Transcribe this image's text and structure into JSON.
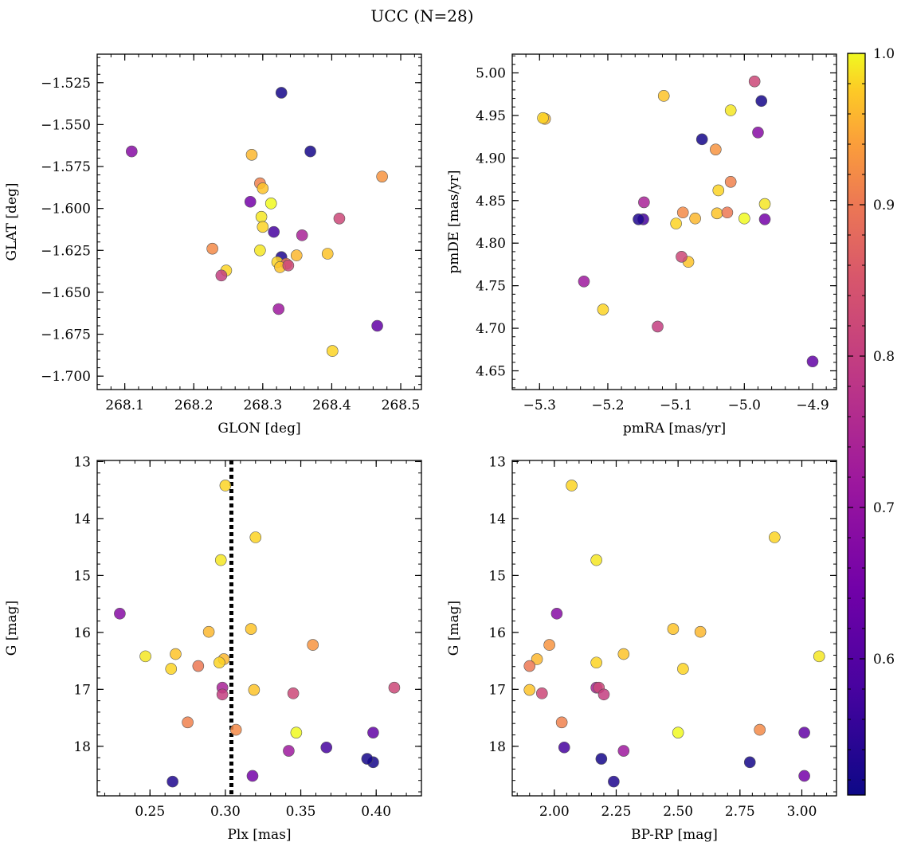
{
  "chart_data": {
    "title": "UCC (N=28)",
    "colorbar": {
      "range": [
        0.51,
        1.0
      ],
      "ticks": [
        0.6,
        0.7,
        0.8,
        0.9,
        1.0
      ],
      "tick_labels": [
        "0.6",
        "0.7",
        "0.8",
        "0.9",
        "1.0"
      ],
      "colormap": "plasma"
    },
    "stars": [
      {
        "glon": 268.327,
        "glat": -1.531,
        "pmra": -4.975,
        "pmde": 4.967,
        "plx": 0.398,
        "g": 18.28,
        "bprp": 2.79,
        "p": 0.52
      },
      {
        "glon": 268.369,
        "glat": -1.566,
        "pmra": -5.062,
        "pmde": 4.922,
        "plx": 0.394,
        "g": 18.22,
        "bprp": 2.19,
        "p": 0.52
      },
      {
        "glon": 268.11,
        "glat": -1.566,
        "pmra": -4.98,
        "pmde": 4.93,
        "plx": 0.23,
        "g": 15.67,
        "bprp": 2.01,
        "p": 0.68
      },
      {
        "glon": 268.284,
        "glat": -1.568,
        "pmra": -5.292,
        "pmde": 4.946,
        "plx": 0.289,
        "g": 15.99,
        "bprp": 2.59,
        "p": 0.96
      },
      {
        "glon": 268.473,
        "glat": -1.581,
        "pmra": -5.042,
        "pmde": 4.91,
        "plx": 0.358,
        "g": 16.22,
        "bprp": 1.98,
        "p": 0.93
      },
      {
        "glon": 268.296,
        "glat": -1.585,
        "pmra": -5.02,
        "pmde": 4.872,
        "plx": 0.275,
        "g": 17.58,
        "bprp": 2.03,
        "p": 0.91
      },
      {
        "glon": 268.3,
        "glat": -1.588,
        "pmra": -5.118,
        "pmde": 4.973,
        "plx": 0.317,
        "g": 15.94,
        "bprp": 2.48,
        "p": 0.97
      },
      {
        "glon": 268.282,
        "glat": -1.596,
        "pmra": -4.97,
        "pmde": 4.828,
        "plx": 0.318,
        "g": 18.52,
        "bprp": 3.01,
        "p": 0.65
      },
      {
        "glon": 268.312,
        "glat": -1.597,
        "pmra": -5.0,
        "pmde": 4.829,
        "plx": 0.347,
        "g": 17.76,
        "bprp": 2.5,
        "p": 1.0
      },
      {
        "glon": 268.298,
        "glat": -1.605,
        "pmra": -5.02,
        "pmde": 4.956,
        "plx": 0.297,
        "g": 14.73,
        "bprp": 2.17,
        "p": 0.99
      },
      {
        "glon": 268.411,
        "glat": -1.606,
        "pmra": -4.985,
        "pmde": 4.99,
        "plx": 0.345,
        "g": 17.07,
        "bprp": 1.95,
        "p": 0.82
      },
      {
        "glon": 268.3,
        "glat": -1.611,
        "pmra": -5.038,
        "pmde": 4.862,
        "plx": 0.264,
        "g": 16.64,
        "bprp": 2.52,
        "p": 0.98
      },
      {
        "glon": 268.316,
        "glat": -1.614,
        "pmra": -5.148,
        "pmde": 4.828,
        "plx": 0.367,
        "g": 18.02,
        "bprp": 2.04,
        "p": 0.58
      },
      {
        "glon": 268.357,
        "glat": -1.616,
        "pmra": -5.147,
        "pmde": 4.848,
        "plx": 0.298,
        "g": 16.97,
        "bprp": 2.17,
        "p": 0.74
      },
      {
        "glon": 268.227,
        "glat": -1.624,
        "pmra": -5.09,
        "pmde": 4.836,
        "plx": 0.307,
        "g": 17.71,
        "bprp": 2.83,
        "p": 0.92
      },
      {
        "glon": 268.296,
        "glat": -1.625,
        "pmra": -4.97,
        "pmde": 4.846,
        "plx": 0.247,
        "g": 16.42,
        "bprp": 3.07,
        "p": 0.99
      },
      {
        "glon": 268.394,
        "glat": -1.627,
        "pmra": -5.04,
        "pmde": 4.835,
        "plx": 0.267,
        "g": 16.38,
        "bprp": 2.28,
        "p": 0.97
      },
      {
        "glon": 268.349,
        "glat": -1.628,
        "pmra": -5.072,
        "pmde": 4.829,
        "plx": 0.299,
        "g": 16.47,
        "bprp": 1.93,
        "p": 0.96
      },
      {
        "glon": 268.327,
        "glat": -1.629,
        "pmra": -5.155,
        "pmde": 4.828,
        "plx": 0.265,
        "g": 18.62,
        "bprp": 2.24,
        "p": 0.53
      },
      {
        "glon": 268.321,
        "glat": -1.632,
        "pmra": -5.1,
        "pmde": 4.823,
        "plx": 0.296,
        "g": 16.53,
        "bprp": 2.17,
        "p": 0.98
      },
      {
        "glon": 268.334,
        "glat": -1.633,
        "pmra": -5.025,
        "pmde": 4.836,
        "plx": 0.282,
        "g": 16.59,
        "bprp": 1.9,
        "p": 0.9
      },
      {
        "glon": 268.325,
        "glat": -1.635,
        "pmra": -5.082,
        "pmde": 4.778,
        "plx": 0.319,
        "g": 17.01,
        "bprp": 1.9,
        "p": 0.97
      },
      {
        "glon": 268.337,
        "glat": -1.634,
        "pmra": -5.092,
        "pmde": 4.784,
        "plx": 0.412,
        "g": 16.97,
        "bprp": 2.18,
        "p": 0.82
      },
      {
        "glon": 268.247,
        "glat": -1.637,
        "pmra": -5.295,
        "pmde": 4.947,
        "plx": 0.3,
        "g": 13.42,
        "bprp": 2.07,
        "p": 0.98
      },
      {
        "glon": 268.24,
        "glat": -1.64,
        "pmra": -5.127,
        "pmde": 4.702,
        "plx": 0.298,
        "g": 17.09,
        "bprp": 2.2,
        "p": 0.8
      },
      {
        "glon": 268.323,
        "glat": -1.66,
        "pmra": -5.235,
        "pmde": 4.755,
        "plx": 0.342,
        "g": 18.08,
        "bprp": 2.28,
        "p": 0.72
      },
      {
        "glon": 268.466,
        "glat": -1.67,
        "pmra": -4.9,
        "pmde": 4.661,
        "plx": 0.398,
        "g": 17.76,
        "bprp": 3.01,
        "p": 0.62
      },
      {
        "glon": 268.401,
        "glat": -1.685,
        "pmra": -5.207,
        "pmde": 4.722,
        "plx": 0.32,
        "g": 14.33,
        "bprp": 2.89,
        "p": 0.98
      }
    ],
    "panels": [
      {
        "id": "glon-glat",
        "type": "scatter",
        "x_field": "glon",
        "y_field": "glat",
        "xlabel": "GLON [deg]",
        "ylabel": "GLAT [deg]",
        "xlim": [
          268.06,
          268.53
        ],
        "ylim": [
          -1.708,
          -1.508
        ],
        "y_inverted": false,
        "xticks": [
          268.1,
          268.2,
          268.3,
          268.4,
          268.5
        ],
        "xtick_labels": [
          "268.1",
          "268.2",
          "268.3",
          "268.4",
          "268.5"
        ],
        "yticks": [
          -1.525,
          -1.55,
          -1.575,
          -1.6,
          -1.625,
          -1.65,
          -1.675,
          -1.7
        ],
        "ytick_labels": [
          "−1.525",
          "−1.550",
          "−1.575",
          "−1.600",
          "−1.625",
          "−1.650",
          "−1.675",
          "−1.700"
        ]
      },
      {
        "id": "pmra-pmde",
        "type": "scatter",
        "x_field": "pmra",
        "y_field": "pmde",
        "xlabel": "pmRA [mas/yr]",
        "ylabel": "pmDE [mas/yr]",
        "xlim": [
          -5.34,
          -4.865
        ],
        "ylim": [
          4.628,
          5.022
        ],
        "y_inverted": false,
        "xticks": [
          -5.3,
          -5.2,
          -5.1,
          -5.0,
          -4.9
        ],
        "xtick_labels": [
          "−5.3",
          "−5.2",
          "−5.1",
          "−5.0",
          "−4.9"
        ],
        "yticks": [
          4.65,
          4.7,
          4.75,
          4.8,
          4.85,
          4.9,
          4.95,
          5.0
        ],
        "ytick_labels": [
          "4.65",
          "4.70",
          "4.75",
          "4.80",
          "4.85",
          "4.90",
          "4.95",
          "5.00"
        ]
      },
      {
        "id": "plx-g",
        "type": "scatter",
        "x_field": "plx",
        "y_field": "g",
        "xlabel": "Plx [mas]",
        "ylabel": "G [mag]",
        "xlim": [
          0.215,
          0.43
        ],
        "ylim": [
          12.98,
          18.87
        ],
        "y_inverted": true,
        "xticks": [
          0.25,
          0.3,
          0.35,
          0.4
        ],
        "xtick_labels": [
          "0.25",
          "0.30",
          "0.35",
          "0.40"
        ],
        "yticks": [
          13,
          14,
          15,
          16,
          17,
          18
        ],
        "ytick_labels": [
          "13",
          "14",
          "15",
          "16",
          "17",
          "18"
        ],
        "vline": 0.304
      },
      {
        "id": "bprp-g",
        "type": "scatter",
        "x_field": "bprp",
        "y_field": "g",
        "xlabel": "BP-RP [mag]",
        "ylabel": "G [mag]",
        "xlim": [
          1.83,
          3.14
        ],
        "ylim": [
          12.98,
          18.87
        ],
        "y_inverted": true,
        "xticks": [
          2.0,
          2.25,
          2.5,
          2.75,
          3.0
        ],
        "xtick_labels": [
          "2.00",
          "2.25",
          "2.50",
          "2.75",
          "3.00"
        ],
        "yticks": [
          13,
          14,
          15,
          16,
          17,
          18
        ],
        "ytick_labels": [
          "13",
          "14",
          "15",
          "16",
          "17",
          "18"
        ]
      }
    ]
  }
}
